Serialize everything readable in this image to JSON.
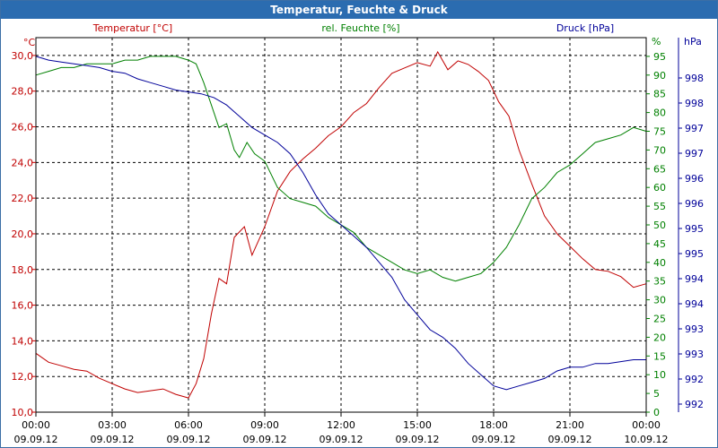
{
  "window": {
    "title": "Temperatur, Feuchte & Druck"
  },
  "chart_data": {
    "type": "line",
    "title": "Temperatur, Feuchte & Druck",
    "x_labels": [
      {
        "time": "00:00",
        "date": "09.09.12"
      },
      {
        "time": "03:00",
        "date": "09.09.12"
      },
      {
        "time": "06:00",
        "date": "09.09.12"
      },
      {
        "time": "09:00",
        "date": "09.09.12"
      },
      {
        "time": "12:00",
        "date": "09.09.12"
      },
      {
        "time": "15:00",
        "date": "09.09.12"
      },
      {
        "time": "18:00",
        "date": "09.09.12"
      },
      {
        "time": "21:00",
        "date": "09.09.12"
      },
      {
        "time": "00:00",
        "date": "10.09.12"
      }
    ],
    "x_range_hours": [
      0,
      24
    ],
    "axes": {
      "temperature": {
        "label": "Temperatur [°C]",
        "unit": "°C",
        "range": [
          10,
          31
        ],
        "ticks": [
          "10,0",
          "12,0",
          "14,0",
          "16,0",
          "18,0",
          "20,0",
          "22,0",
          "24,0",
          "26,0",
          "28,0",
          "30,0"
        ]
      },
      "humidity": {
        "label": "rel. Feuchte [%]",
        "unit": "%",
        "range": [
          0,
          100
        ],
        "ticks": [
          "0",
          "5",
          "10",
          "15",
          "20",
          "25",
          "30",
          "35",
          "40",
          "45",
          "50",
          "55",
          "60",
          "65",
          "70",
          "75",
          "80",
          "85",
          "90",
          "95"
        ]
      },
      "pressure": {
        "label": "Druck [hPa]",
        "unit": "hPa",
        "ticks": [
          "998",
          "998",
          "997",
          "997",
          "996",
          "996",
          "995",
          "995",
          "994",
          "994",
          "993",
          "993",
          "992",
          "992"
        ]
      }
    },
    "series": [
      {
        "name": "Temperatur",
        "color": "#c00000",
        "axis": "temperature",
        "points": [
          [
            0,
            13.3
          ],
          [
            0.5,
            12.8
          ],
          [
            1,
            12.6
          ],
          [
            1.5,
            12.4
          ],
          [
            2,
            12.3
          ],
          [
            2.5,
            11.9
          ],
          [
            3,
            11.6
          ],
          [
            3.5,
            11.3
          ],
          [
            4,
            11.1
          ],
          [
            4.5,
            11.2
          ],
          [
            5,
            11.3
          ],
          [
            5.5,
            11.0
          ],
          [
            6,
            10.8
          ],
          [
            6.3,
            11.6
          ],
          [
            6.6,
            13.0
          ],
          [
            6.9,
            15.5
          ],
          [
            7.2,
            17.5
          ],
          [
            7.5,
            17.2
          ],
          [
            7.8,
            19.8
          ],
          [
            8.2,
            20.4
          ],
          [
            8.5,
            18.8
          ],
          [
            9,
            20.4
          ],
          [
            9.5,
            22.4
          ],
          [
            10,
            23.5
          ],
          [
            10.5,
            24.2
          ],
          [
            11,
            24.8
          ],
          [
            11.5,
            25.5
          ],
          [
            12,
            26.0
          ],
          [
            12.5,
            26.8
          ],
          [
            13,
            27.3
          ],
          [
            13.5,
            28.2
          ],
          [
            14,
            29.0
          ],
          [
            14.5,
            29.3
          ],
          [
            15,
            29.6
          ],
          [
            15.5,
            29.4
          ],
          [
            15.8,
            30.2
          ],
          [
            16.2,
            29.2
          ],
          [
            16.6,
            29.7
          ],
          [
            17,
            29.5
          ],
          [
            17.4,
            29.1
          ],
          [
            17.8,
            28.6
          ],
          [
            18.2,
            27.4
          ],
          [
            18.6,
            26.6
          ],
          [
            19,
            24.7
          ],
          [
            19.5,
            22.8
          ],
          [
            20,
            21.0
          ],
          [
            20.5,
            20.0
          ],
          [
            21,
            19.3
          ],
          [
            21.5,
            18.6
          ],
          [
            22,
            18.0
          ],
          [
            22.5,
            17.9
          ],
          [
            23,
            17.6
          ],
          [
            23.5,
            17.0
          ],
          [
            24,
            17.2
          ]
        ]
      },
      {
        "name": "rel. Feuchte",
        "color": "#008000",
        "axis": "humidity",
        "points": [
          [
            0,
            90
          ],
          [
            0.5,
            91
          ],
          [
            1,
            92
          ],
          [
            1.5,
            92
          ],
          [
            2,
            93
          ],
          [
            2.5,
            93
          ],
          [
            3,
            93
          ],
          [
            3.5,
            94
          ],
          [
            4,
            94
          ],
          [
            4.5,
            95
          ],
          [
            5,
            95
          ],
          [
            5.5,
            95
          ],
          [
            6,
            94
          ],
          [
            6.3,
            93
          ],
          [
            6.6,
            88
          ],
          [
            6.9,
            82
          ],
          [
            7.2,
            76
          ],
          [
            7.5,
            77
          ],
          [
            7.8,
            70
          ],
          [
            8,
            68
          ],
          [
            8.3,
            72
          ],
          [
            8.6,
            69
          ],
          [
            9,
            67
          ],
          [
            9.5,
            60
          ],
          [
            10,
            57
          ],
          [
            10.5,
            56
          ],
          [
            11,
            55
          ],
          [
            11.5,
            52
          ],
          [
            12,
            50
          ],
          [
            12.5,
            48
          ],
          [
            13,
            44
          ],
          [
            13.5,
            42
          ],
          [
            14,
            40
          ],
          [
            14.5,
            38
          ],
          [
            15,
            37
          ],
          [
            15.5,
            38
          ],
          [
            16,
            36
          ],
          [
            16.5,
            35
          ],
          [
            17,
            36
          ],
          [
            17.5,
            37
          ],
          [
            18,
            40
          ],
          [
            18.5,
            44
          ],
          [
            19,
            50
          ],
          [
            19.5,
            57
          ],
          [
            20,
            60
          ],
          [
            20.5,
            64
          ],
          [
            21,
            66
          ],
          [
            21.5,
            69
          ],
          [
            22,
            72
          ],
          [
            22.5,
            73
          ],
          [
            23,
            74
          ],
          [
            23.5,
            76
          ],
          [
            24,
            75
          ]
        ]
      },
      {
        "name": "Druck",
        "color": "#000099",
        "axis": "pressure_relative",
        "points": [
          [
            0,
            95
          ],
          [
            0.5,
            94
          ],
          [
            1,
            93.5
          ],
          [
            1.5,
            93
          ],
          [
            2,
            92.5
          ],
          [
            2.5,
            92
          ],
          [
            3,
            91
          ],
          [
            3.5,
            90.5
          ],
          [
            4,
            89
          ],
          [
            4.5,
            88
          ],
          [
            5,
            87
          ],
          [
            5.5,
            86
          ],
          [
            6,
            85.5
          ],
          [
            6.5,
            85
          ],
          [
            7,
            84
          ],
          [
            7.5,
            82
          ],
          [
            8,
            79
          ],
          [
            8.5,
            76
          ],
          [
            9,
            74
          ],
          [
            9.5,
            72
          ],
          [
            10,
            69
          ],
          [
            10.5,
            64
          ],
          [
            11,
            58
          ],
          [
            11.5,
            53
          ],
          [
            12,
            50
          ],
          [
            12.5,
            47
          ],
          [
            13,
            44
          ],
          [
            13.5,
            40
          ],
          [
            14,
            36
          ],
          [
            14.5,
            30
          ],
          [
            15,
            26
          ],
          [
            15.5,
            22
          ],
          [
            16,
            20
          ],
          [
            16.5,
            17
          ],
          [
            17,
            13
          ],
          [
            17.5,
            10
          ],
          [
            18,
            7
          ],
          [
            18.5,
            6
          ],
          [
            19,
            7
          ],
          [
            19.5,
            8
          ],
          [
            20,
            9
          ],
          [
            20.5,
            11
          ],
          [
            21,
            12
          ],
          [
            21.5,
            12
          ],
          [
            22,
            13
          ],
          [
            22.5,
            13
          ],
          [
            23,
            13.5
          ],
          [
            23.5,
            14
          ],
          [
            24,
            14
          ]
        ]
      }
    ]
  }
}
